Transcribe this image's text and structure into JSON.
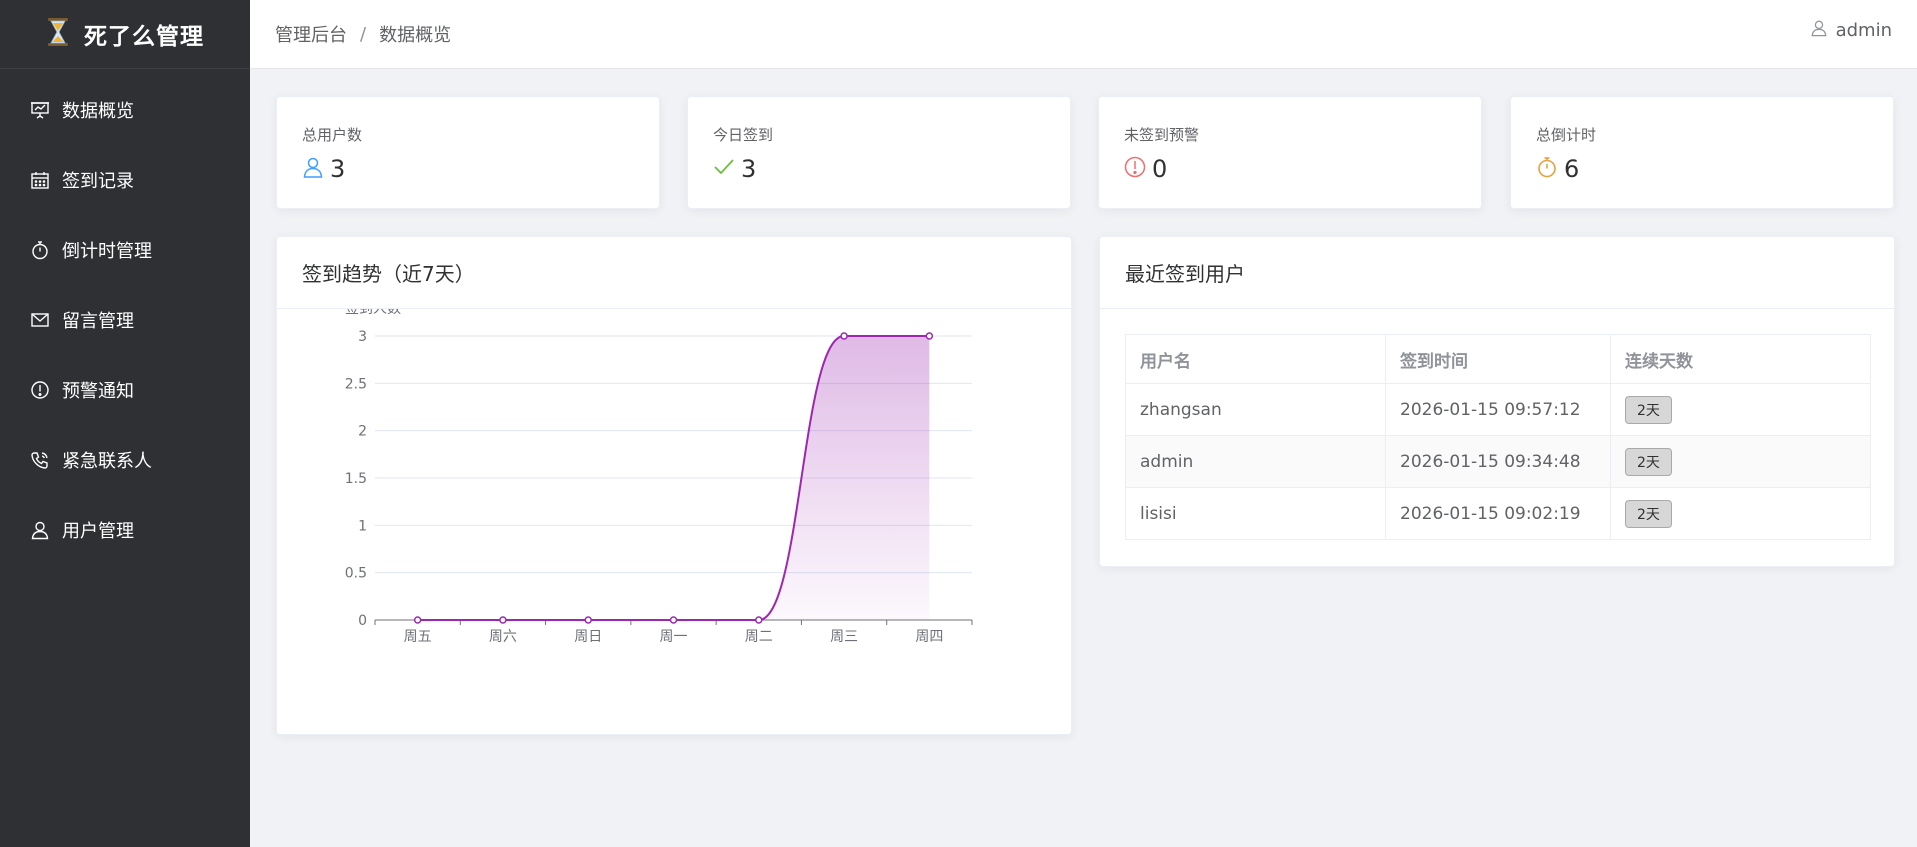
{
  "app": {
    "title": "死了么管理"
  },
  "sidebar": {
    "items": [
      {
        "label": "数据概览",
        "icon": "presentation-icon"
      },
      {
        "label": "签到记录",
        "icon": "calendar-icon"
      },
      {
        "label": "倒计时管理",
        "icon": "stopwatch-icon"
      },
      {
        "label": "留言管理",
        "icon": "message-icon"
      },
      {
        "label": "预警通知",
        "icon": "warning-icon"
      },
      {
        "label": "紧急联系人",
        "icon": "phone-icon"
      },
      {
        "label": "用户管理",
        "icon": "user-icon"
      }
    ]
  },
  "header": {
    "breadcrumb": [
      "管理后台",
      "数据概览"
    ],
    "separator": "/",
    "user": "admin"
  },
  "stats": [
    {
      "title": "总用户数",
      "value": "3",
      "icon": "user-icon",
      "color": "#409eff"
    },
    {
      "title": "今日签到",
      "value": "3",
      "icon": "check-icon",
      "color": "#67c23a"
    },
    {
      "title": "未签到预警",
      "value": "0",
      "icon": "warning-icon",
      "color": "#f56c6c"
    },
    {
      "title": "总倒计时",
      "value": "6",
      "icon": "stopwatch-icon",
      "color": "#e6a23c"
    }
  ],
  "chart_panel": {
    "title": "签到趋势（近7天）"
  },
  "chart_data": {
    "type": "area",
    "categories": [
      "周五",
      "周六",
      "周日",
      "周一",
      "周二",
      "周三",
      "周四"
    ],
    "series": [
      {
        "name": "",
        "values": [
          0,
          0,
          0,
          0,
          0,
          3,
          3
        ]
      }
    ],
    "ylabel": "签到人数",
    "yticks": [
      "0",
      "0.5",
      "1",
      "1.5",
      "2",
      "2.5",
      "3"
    ],
    "ylim": [
      0,
      3
    ],
    "grid": true,
    "line_color": "#9c27b0"
  },
  "table_panel": {
    "title": "最近签到用户",
    "columns": [
      "用户名",
      "签到时间",
      "连续天数"
    ],
    "rows": [
      {
        "username": "zhangsan",
        "time": "2026-01-15 09:57:12",
        "days": "2天"
      },
      {
        "username": "admin",
        "time": "2026-01-15 09:34:48",
        "days": "2天"
      },
      {
        "username": "lisisi",
        "time": "2026-01-15 09:02:19",
        "days": "2天"
      }
    ]
  }
}
